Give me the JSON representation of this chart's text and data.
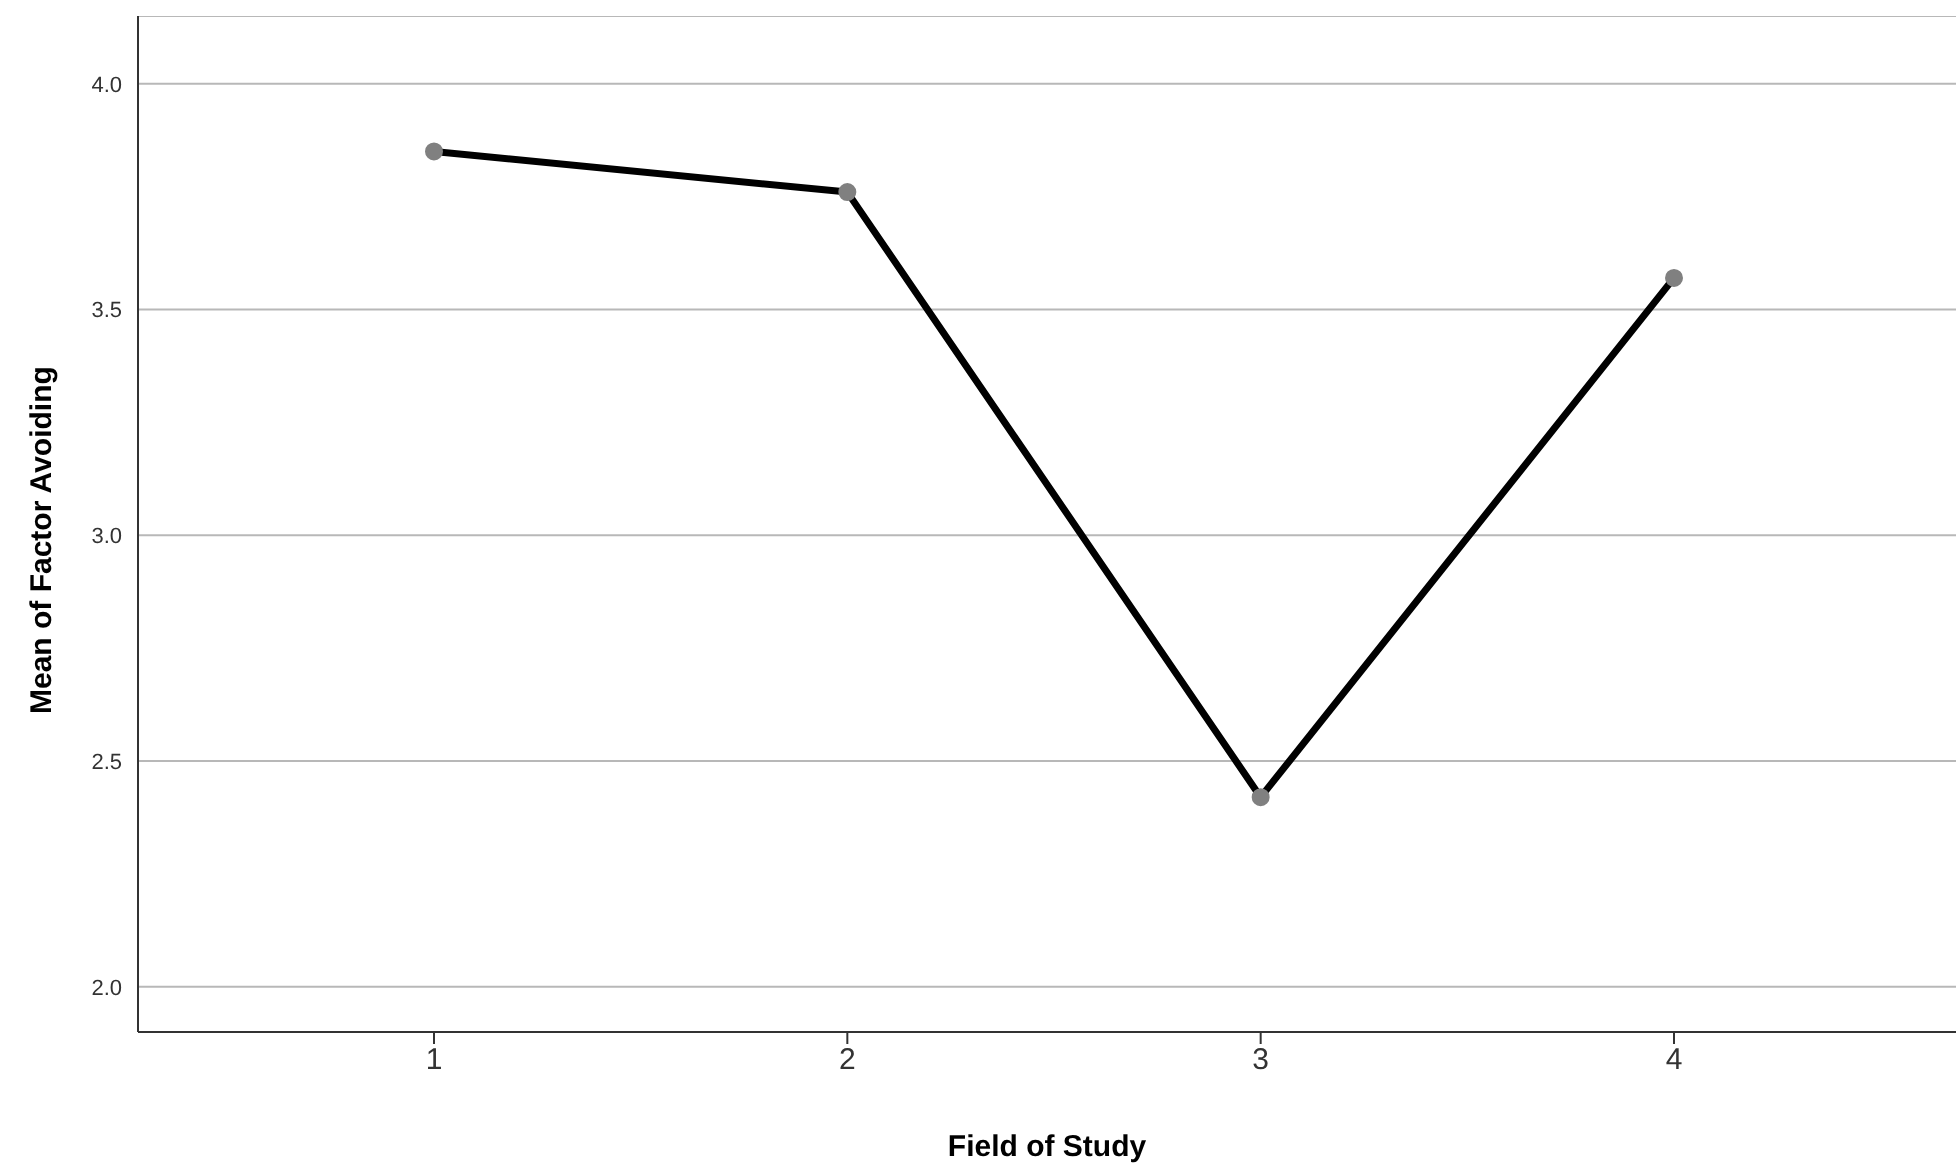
{
  "chart_data": {
    "type": "line",
    "xlabel": "Field of Study",
    "ylabel": "Mean of Factor Avoiding",
    "categories": [
      "1",
      "2",
      "3",
      "4"
    ],
    "series": [
      {
        "color": "#000000",
        "values": [
          3.85,
          3.76,
          2.42,
          3.57
        ]
      }
    ],
    "ylim": [
      1.9,
      4.15
    ],
    "yticks": [
      {
        "value": 2,
        "label": "2.0"
      },
      {
        "value": 2.5,
        "label": "2.5"
      },
      {
        "value": 3,
        "label": "3.0"
      },
      {
        "value": 3.5,
        "label": "3.5"
      },
      {
        "value": 4,
        "label": "4.0"
      }
    ],
    "grid": "y",
    "marker": "circle",
    "line_style": "solid",
    "legend": false
  }
}
